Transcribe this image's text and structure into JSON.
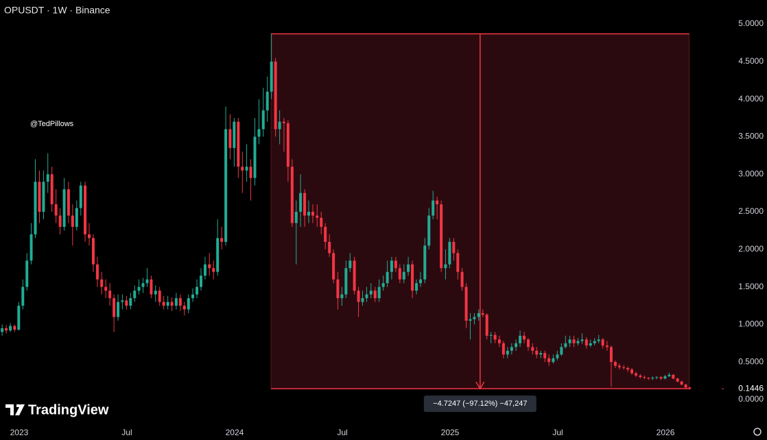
{
  "chart_data": {
    "type": "candlestick",
    "title": "OPUSDT · 1W · Binance",
    "watermark": "@TedPillows",
    "brand": "TradingView",
    "up_color": "#22ab94",
    "down_color": "#f23645",
    "xlim": [
      2022.911,
      2026.261
    ],
    "ylim": [
      -0.155,
      5.32
    ],
    "xticks": [
      {
        "value": 2023,
        "label": "2023"
      },
      {
        "value": 2023.5,
        "label": "Jul"
      },
      {
        "value": 2024,
        "label": "2024"
      },
      {
        "value": 2024.5,
        "label": "Jul"
      },
      {
        "value": 2025,
        "label": "2025"
      },
      {
        "value": 2025.5,
        "label": "Jul"
      },
      {
        "value": 2026,
        "label": "2026"
      }
    ],
    "yticks": [
      {
        "value": 0,
        "label": "0.0000"
      },
      {
        "value": 0.5,
        "label": "0.5000"
      },
      {
        "value": 1,
        "label": "1.0000"
      },
      {
        "value": 1.5,
        "label": "1.5000"
      },
      {
        "value": 2,
        "label": "2.0000"
      },
      {
        "value": 2.5,
        "label": "2.5000"
      },
      {
        "value": 3,
        "label": "3.0000"
      },
      {
        "value": 3.5,
        "label": "3.5000"
      },
      {
        "value": 4,
        "label": "4.0000"
      },
      {
        "value": 4.5,
        "label": "4.5000"
      },
      {
        "value": 5,
        "label": "5.0000"
      }
    ],
    "price_marker": {
      "value": 0.1446,
      "label": "0.1446"
    },
    "measurement": {
      "x": [
        2024.169,
        2026.11
      ],
      "from": 4.8693,
      "to": 0.1446,
      "label": "−4.7247 (−97.12%) −47,247"
    },
    "candles": [
      [
        2022.921,
        0.9,
        1.0,
        0.85,
        0.95
      ],
      [
        2022.94,
        0.95,
        0.99,
        0.88,
        0.92
      ],
      [
        2022.959,
        0.92,
        1.02,
        0.9,
        0.98
      ],
      [
        2022.979,
        0.98,
        1.0,
        0.9,
        0.93
      ],
      [
        2022.998,
        0.93,
        1.3,
        0.92,
        1.25
      ],
      [
        2023.017,
        1.25,
        1.6,
        1.2,
        1.5
      ],
      [
        2023.036,
        1.5,
        1.95,
        1.45,
        1.85
      ],
      [
        2023.056,
        1.85,
        2.35,
        1.8,
        2.2
      ],
      [
        2023.075,
        2.2,
        3.2,
        2.15,
        2.9
      ],
      [
        2023.094,
        2.9,
        3.05,
        2.35,
        2.5
      ],
      [
        2023.113,
        2.5,
        3.05,
        2.4,
        2.9
      ],
      [
        2023.133,
        2.9,
        3.28,
        2.75,
        3.0
      ],
      [
        2023.152,
        3.0,
        3.1,
        2.5,
        2.6
      ],
      [
        2023.171,
        2.6,
        2.8,
        2.35,
        2.45
      ],
      [
        2023.19,
        2.45,
        2.55,
        2.2,
        2.3
      ],
      [
        2023.209,
        2.3,
        2.95,
        2.25,
        2.8
      ],
      [
        2023.229,
        2.8,
        2.9,
        2.35,
        2.45
      ],
      [
        2023.248,
        2.45,
        2.6,
        2.05,
        2.3
      ],
      [
        2023.267,
        2.3,
        2.65,
        2.25,
        2.55
      ],
      [
        2023.286,
        2.55,
        2.9,
        2.45,
        2.85
      ],
      [
        2023.306,
        2.85,
        2.9,
        2.1,
        2.2
      ],
      [
        2023.325,
        2.2,
        2.35,
        2.05,
        2.15
      ],
      [
        2023.344,
        2.15,
        2.2,
        1.7,
        1.8
      ],
      [
        2023.363,
        1.8,
        1.9,
        1.5,
        1.6
      ],
      [
        2023.383,
        1.6,
        1.7,
        1.4,
        1.5
      ],
      [
        2023.402,
        1.5,
        1.6,
        1.35,
        1.45
      ],
      [
        2023.421,
        1.45,
        1.55,
        1.25,
        1.35
      ],
      [
        2023.44,
        1.35,
        1.4,
        0.9,
        1.1
      ],
      [
        2023.459,
        1.1,
        1.4,
        1.05,
        1.3
      ],
      [
        2023.479,
        1.3,
        1.4,
        1.2,
        1.32
      ],
      [
        2023.498,
        1.32,
        1.38,
        1.2,
        1.25
      ],
      [
        2023.517,
        1.25,
        1.42,
        1.2,
        1.35
      ],
      [
        2023.536,
        1.35,
        1.52,
        1.3,
        1.45
      ],
      [
        2023.556,
        1.45,
        1.6,
        1.4,
        1.5
      ],
      [
        2023.575,
        1.5,
        1.62,
        1.42,
        1.55
      ],
      [
        2023.594,
        1.55,
        1.75,
        1.5,
        1.6
      ],
      [
        2023.613,
        1.6,
        1.65,
        1.35,
        1.4
      ],
      [
        2023.633,
        1.4,
        1.52,
        1.3,
        1.45
      ],
      [
        2023.652,
        1.45,
        1.5,
        1.25,
        1.3
      ],
      [
        2023.671,
        1.3,
        1.38,
        1.2,
        1.25
      ],
      [
        2023.69,
        1.25,
        1.38,
        1.2,
        1.3
      ],
      [
        2023.709,
        1.3,
        1.36,
        1.18,
        1.25
      ],
      [
        2023.729,
        1.25,
        1.42,
        1.2,
        1.35
      ],
      [
        2023.748,
        1.35,
        1.4,
        1.18,
        1.25
      ],
      [
        2023.767,
        1.25,
        1.3,
        1.12,
        1.2
      ],
      [
        2023.786,
        1.2,
        1.4,
        1.15,
        1.35
      ],
      [
        2023.806,
        1.35,
        1.48,
        1.3,
        1.4
      ],
      [
        2023.825,
        1.4,
        1.6,
        1.35,
        1.5
      ],
      [
        2023.844,
        1.5,
        1.75,
        1.45,
        1.65
      ],
      [
        2023.863,
        1.65,
        1.9,
        1.6,
        1.8
      ],
      [
        2023.883,
        1.8,
        1.95,
        1.65,
        1.75
      ],
      [
        2023.902,
        1.75,
        1.85,
        1.6,
        1.7
      ],
      [
        2023.921,
        1.7,
        2.4,
        1.65,
        2.15
      ],
      [
        2023.94,
        2.15,
        2.3,
        2.0,
        2.1
      ],
      [
        2023.959,
        2.1,
        3.9,
        2.05,
        3.6
      ],
      [
        2023.979,
        3.6,
        3.8,
        3.2,
        3.35
      ],
      [
        2023.998,
        3.35,
        3.75,
        3.1,
        3.7
      ],
      [
        2024.017,
        3.7,
        3.75,
        2.95,
        3.1
      ],
      [
        2024.036,
        3.1,
        3.3,
        2.75,
        3.05
      ],
      [
        2024.056,
        3.05,
        3.4,
        2.9,
        3.1
      ],
      [
        2024.075,
        3.1,
        3.2,
        2.65,
        2.95
      ],
      [
        2024.094,
        2.95,
        3.75,
        2.85,
        3.5
      ],
      [
        2024.113,
        3.5,
        4.0,
        3.4,
        3.6
      ],
      [
        2024.133,
        3.6,
        4.15,
        3.5,
        3.85
      ],
      [
        2024.152,
        3.85,
        4.3,
        3.7,
        4.1
      ],
      [
        2024.171,
        4.1,
        4.87,
        4.0,
        4.5
      ],
      [
        2024.19,
        4.5,
        4.55,
        3.5,
        3.6
      ],
      [
        2024.209,
        3.6,
        3.85,
        3.4,
        3.7
      ],
      [
        2024.229,
        3.7,
        3.75,
        3.3,
        3.68
      ],
      [
        2024.248,
        3.68,
        3.72,
        2.9,
        3.1
      ],
      [
        2024.267,
        3.1,
        3.2,
        2.3,
        2.35
      ],
      [
        2024.286,
        2.35,
        2.65,
        1.8,
        2.5
      ],
      [
        2024.306,
        2.5,
        3.0,
        2.3,
        2.75
      ],
      [
        2024.325,
        2.75,
        2.8,
        2.3,
        2.45
      ],
      [
        2024.344,
        2.45,
        2.65,
        2.35,
        2.5
      ],
      [
        2024.363,
        2.5,
        2.6,
        2.35,
        2.45
      ],
      [
        2024.383,
        2.45,
        2.6,
        2.3,
        2.42
      ],
      [
        2024.402,
        2.42,
        2.5,
        2.2,
        2.3
      ],
      [
        2024.421,
        2.3,
        2.35,
        2.0,
        2.1
      ],
      [
        2024.44,
        2.1,
        2.2,
        1.9,
        1.95
      ],
      [
        2024.459,
        1.95,
        2.0,
        1.55,
        1.6
      ],
      [
        2024.479,
        1.6,
        1.7,
        1.2,
        1.35
      ],
      [
        2024.498,
        1.35,
        1.5,
        1.25,
        1.4
      ],
      [
        2024.517,
        1.4,
        1.85,
        1.35,
        1.75
      ],
      [
        2024.536,
        1.75,
        1.95,
        1.7,
        1.85
      ],
      [
        2024.556,
        1.85,
        1.9,
        1.4,
        1.45
      ],
      [
        2024.575,
        1.45,
        1.5,
        1.1,
        1.3
      ],
      [
        2024.594,
        1.3,
        1.45,
        1.25,
        1.35
      ],
      [
        2024.613,
        1.35,
        1.5,
        1.3,
        1.4
      ],
      [
        2024.633,
        1.4,
        1.55,
        1.35,
        1.45
      ],
      [
        2024.652,
        1.45,
        1.5,
        1.3,
        1.35
      ],
      [
        2024.671,
        1.35,
        1.6,
        1.3,
        1.5
      ],
      [
        2024.69,
        1.5,
        1.65,
        1.45,
        1.55
      ],
      [
        2024.709,
        1.55,
        1.85,
        1.5,
        1.7
      ],
      [
        2024.729,
        1.7,
        1.9,
        1.6,
        1.85
      ],
      [
        2024.748,
        1.85,
        1.9,
        1.7,
        1.75
      ],
      [
        2024.767,
        1.75,
        1.8,
        1.55,
        1.6
      ],
      [
        2024.786,
        1.6,
        1.8,
        1.55,
        1.7
      ],
      [
        2024.806,
        1.7,
        1.9,
        1.65,
        1.8
      ],
      [
        2024.825,
        1.8,
        1.85,
        1.35,
        1.45
      ],
      [
        2024.844,
        1.45,
        1.6,
        1.4,
        1.55
      ],
      [
        2024.863,
        1.55,
        1.7,
        1.5,
        1.6
      ],
      [
        2024.883,
        1.6,
        2.15,
        1.55,
        2.05
      ],
      [
        2024.902,
        2.05,
        2.55,
        2.0,
        2.45
      ],
      [
        2024.921,
        2.45,
        2.78,
        2.4,
        2.65
      ],
      [
        2024.94,
        2.65,
        2.7,
        2.4,
        2.6
      ],
      [
        2024.959,
        2.6,
        2.65,
        1.7,
        1.75
      ],
      [
        2024.979,
        1.75,
        2.0,
        1.6,
        1.8
      ],
      [
        2024.998,
        1.8,
        2.15,
        1.75,
        2.1
      ],
      [
        2025.017,
        2.1,
        2.15,
        1.85,
        1.95
      ],
      [
        2025.036,
        1.95,
        2.0,
        1.6,
        1.7
      ],
      [
        2025.056,
        1.7,
        1.75,
        1.45,
        1.5
      ],
      [
        2025.075,
        1.5,
        1.55,
        0.95,
        1.05
      ],
      [
        2025.094,
        1.05,
        1.15,
        0.8,
        1.07
      ],
      [
        2025.113,
        1.07,
        1.15,
        1.0,
        1.1
      ],
      [
        2025.133,
        1.1,
        1.2,
        1.05,
        1.15
      ],
      [
        2025.152,
        1.15,
        1.2,
        1.1,
        1.13
      ],
      [
        2025.171,
        1.13,
        1.15,
        0.8,
        0.85
      ],
      [
        2025.19,
        0.85,
        0.9,
        0.75,
        0.86
      ],
      [
        2025.209,
        0.86,
        0.9,
        0.75,
        0.8
      ],
      [
        2025.229,
        0.8,
        0.85,
        0.7,
        0.75
      ],
      [
        2025.248,
        0.75,
        0.78,
        0.55,
        0.6
      ],
      [
        2025.267,
        0.6,
        0.7,
        0.55,
        0.65
      ],
      [
        2025.286,
        0.65,
        0.75,
        0.6,
        0.7
      ],
      [
        2025.306,
        0.7,
        0.8,
        0.65,
        0.75
      ],
      [
        2025.325,
        0.75,
        0.92,
        0.7,
        0.85
      ],
      [
        2025.344,
        0.85,
        0.9,
        0.75,
        0.8
      ],
      [
        2025.363,
        0.8,
        0.82,
        0.65,
        0.7
      ],
      [
        2025.383,
        0.7,
        0.75,
        0.6,
        0.65
      ],
      [
        2025.402,
        0.65,
        0.7,
        0.55,
        0.6
      ],
      [
        2025.421,
        0.6,
        0.65,
        0.55,
        0.62
      ],
      [
        2025.44,
        0.62,
        0.65,
        0.5,
        0.55
      ],
      [
        2025.459,
        0.55,
        0.6,
        0.45,
        0.5
      ],
      [
        2025.479,
        0.5,
        0.6,
        0.48,
        0.55
      ],
      [
        2025.498,
        0.55,
        0.65,
        0.52,
        0.6
      ],
      [
        2025.517,
        0.6,
        0.75,
        0.58,
        0.7
      ],
      [
        2025.536,
        0.7,
        0.85,
        0.68,
        0.75
      ],
      [
        2025.556,
        0.75,
        0.85,
        0.7,
        0.8
      ],
      [
        2025.575,
        0.8,
        0.85,
        0.7,
        0.75
      ],
      [
        2025.594,
        0.75,
        0.82,
        0.72,
        0.78
      ],
      [
        2025.613,
        0.78,
        0.88,
        0.74,
        0.8
      ],
      [
        2025.633,
        0.8,
        0.83,
        0.68,
        0.72
      ],
      [
        2025.652,
        0.72,
        0.8,
        0.7,
        0.75
      ],
      [
        2025.671,
        0.75,
        0.82,
        0.72,
        0.78
      ],
      [
        2025.69,
        0.78,
        0.86,
        0.75,
        0.8
      ],
      [
        2025.709,
        0.8,
        0.82,
        0.68,
        0.72
      ],
      [
        2025.729,
        0.72,
        0.78,
        0.65,
        0.7
      ],
      [
        2025.748,
        0.7,
        0.72,
        0.17,
        0.5
      ],
      [
        2025.767,
        0.5,
        0.52,
        0.42,
        0.45
      ],
      [
        2025.786,
        0.45,
        0.48,
        0.4,
        0.43
      ],
      [
        2025.806,
        0.43,
        0.46,
        0.4,
        0.42
      ],
      [
        2025.825,
        0.42,
        0.44,
        0.37,
        0.4
      ],
      [
        2025.844,
        0.4,
        0.42,
        0.33,
        0.35
      ],
      [
        2025.863,
        0.35,
        0.37,
        0.3,
        0.32
      ],
      [
        2025.883,
        0.32,
        0.34,
        0.28,
        0.3
      ],
      [
        2025.902,
        0.3,
        0.32,
        0.27,
        0.29
      ],
      [
        2025.921,
        0.29,
        0.3,
        0.26,
        0.28
      ],
      [
        2025.94,
        0.28,
        0.31,
        0.26,
        0.29
      ],
      [
        2025.959,
        0.29,
        0.31,
        0.27,
        0.3
      ],
      [
        2025.979,
        0.3,
        0.31,
        0.26,
        0.28
      ],
      [
        2025.998,
        0.28,
        0.33,
        0.27,
        0.31
      ],
      [
        2026.017,
        0.31,
        0.36,
        0.3,
        0.33
      ],
      [
        2026.036,
        0.33,
        0.34,
        0.27,
        0.28
      ],
      [
        2026.056,
        0.28,
        0.29,
        0.23,
        0.24
      ],
      [
        2026.075,
        0.24,
        0.25,
        0.19,
        0.2
      ],
      [
        2026.094,
        0.2,
        0.21,
        0.15,
        0.16
      ],
      [
        2026.113,
        0.16,
        0.17,
        0.13,
        0.1446
      ]
    ]
  }
}
